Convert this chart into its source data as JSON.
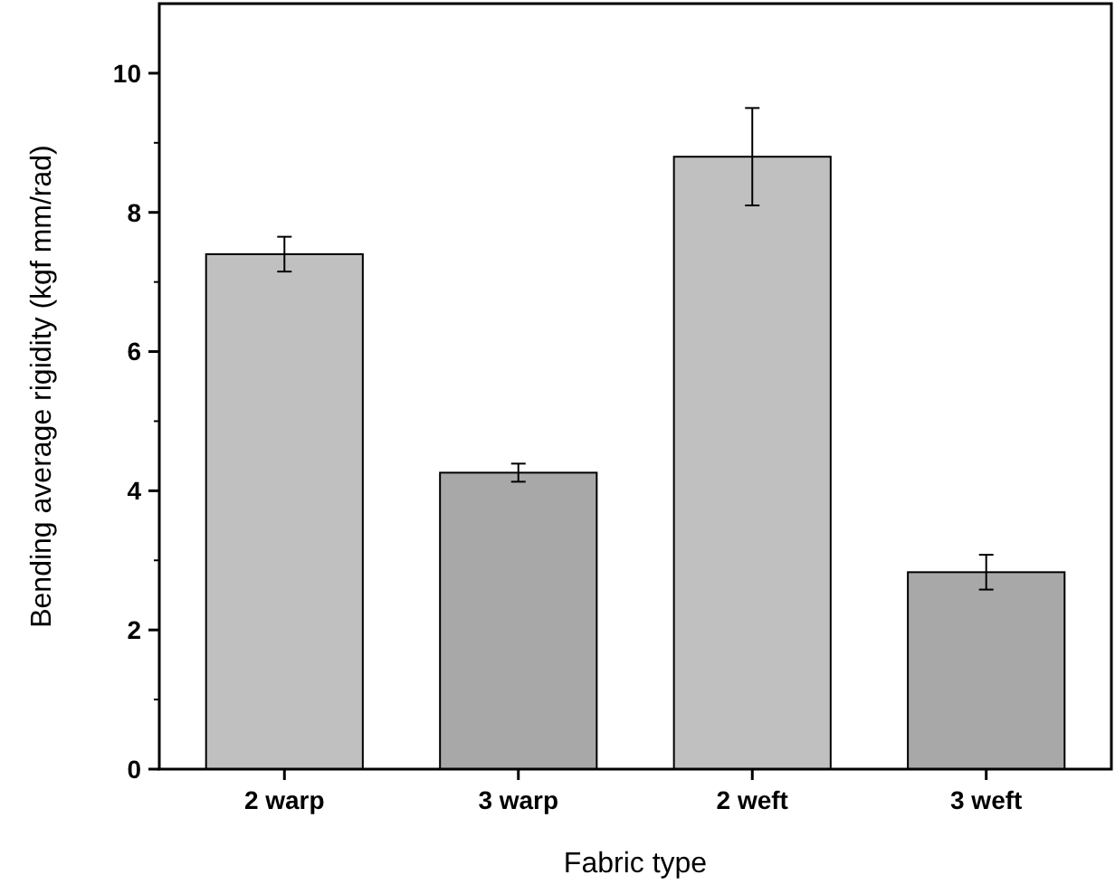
{
  "chart_data": {
    "type": "bar",
    "xlabel": "Fabric type",
    "ylabel": "Bending average rigidity (kgf mm/rad)",
    "categories": [
      "2 warp",
      "3 warp",
      "2 weft",
      "3 weft"
    ],
    "values": [
      7.4,
      4.26,
      8.8,
      2.83
    ],
    "errors": [
      0.25,
      0.13,
      0.7,
      0.25
    ],
    "colors": [
      "#c0c0c0",
      "#a8a8a8",
      "#c0c0c0",
      "#a8a8a8"
    ],
    "ylim": [
      0,
      11
    ],
    "yticks": [
      0,
      2,
      4,
      6,
      8,
      10
    ],
    "grid": false
  }
}
